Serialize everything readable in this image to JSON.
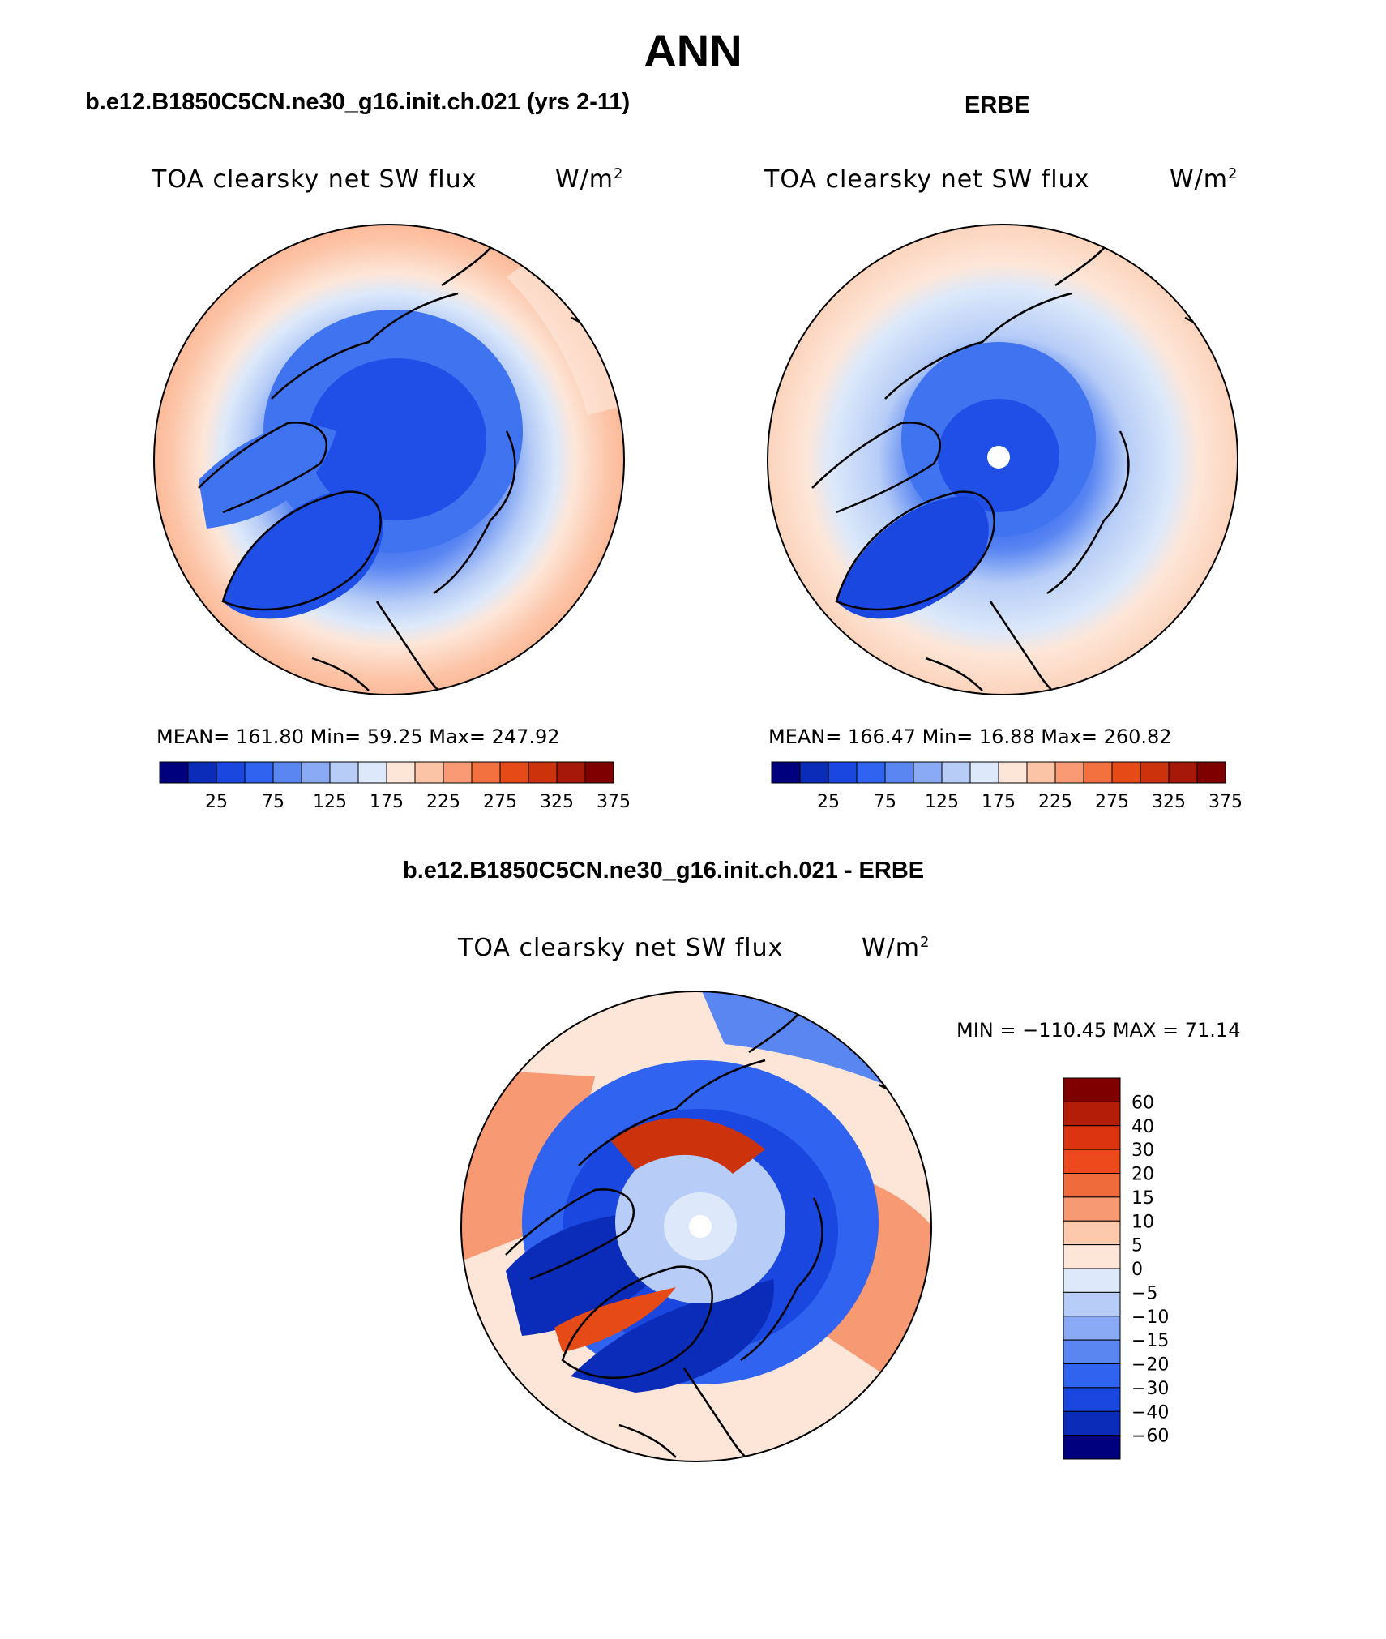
{
  "figure": {
    "title": "ANN"
  },
  "panels": [
    {
      "case_title": "b.e12.B1850C5CN.ne30_g16.init.ch.021 (yrs 2-11)",
      "variable": "TOA clearsky net SW flux",
      "units": "W/m",
      "units_sup": "2",
      "stats": "MEAN= 161.80   Min=   59.25   Max= 247.92",
      "stats_values": {
        "mean": 161.8,
        "min": 59.25,
        "max": 247.92
      }
    },
    {
      "case_title": "ERBE",
      "variable": "TOA clearsky net SW flux",
      "units": "W/m",
      "units_sup": "2",
      "stats": "MEAN= 166.47   Min=   16.88   Max= 260.82",
      "stats_values": {
        "mean": 166.47,
        "min": 16.88,
        "max": 260.82
      }
    },
    {
      "case_title": "b.e12.B1850C5CN.ne30_g16.init.ch.021 - ERBE",
      "variable": "TOA clearsky net SW flux",
      "units": "W/m",
      "units_sup": "2",
      "stats": "MIN = −110.45 MAX =   71.14",
      "stats_values": {
        "min": -110.45,
        "max": 71.14
      }
    }
  ],
  "colorbar_abs": {
    "labels": [
      "25",
      "75",
      "125",
      "175",
      "225",
      "275",
      "325",
      "375"
    ],
    "colors": [
      "#00007e",
      "#0b2cb9",
      "#1a47df",
      "#2f63f0",
      "#5a86f2",
      "#8aaaf5",
      "#b7cdf7",
      "#dde9fa",
      "#fde6d8",
      "#fcc4a7",
      "#f99a74",
      "#f3703f",
      "#e64a17",
      "#cc320b",
      "#a6180a",
      "#7f0000"
    ]
  },
  "colorbar_diff": {
    "labels": [
      "60",
      "40",
      "30",
      "20",
      "15",
      "10",
      "5",
      "0",
      "−5",
      "−10",
      "−15",
      "−20",
      "−30",
      "−40",
      "−60"
    ],
    "colors": [
      "#7f0000",
      "#b41e08",
      "#dc3410",
      "#ec4a1c",
      "#f06b3b",
      "#f79a73",
      "#fcc9ad",
      "#fde6d8",
      "#dde9fa",
      "#b7cdf7",
      "#8aaaf5",
      "#5a86f2",
      "#2f63f0",
      "#1a47df",
      "#0b2cb9",
      "#00007e"
    ]
  },
  "map_colors": {
    "deep": "#1f4fe6",
    "mid": "#3f73f0",
    "light": "#8aaaf5",
    "pale": "#d6e4fb",
    "tan": "#fde2d0",
    "salmon": "#f9b89a",
    "orange": "#f3703f",
    "red": "#cc320b",
    "white": "#ffffff"
  }
}
